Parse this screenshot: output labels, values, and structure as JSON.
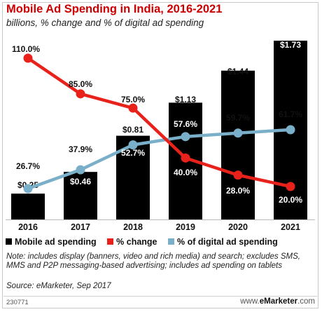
{
  "header": {
    "title": "Mobile Ad Spending in India, 2016-2021",
    "subtitle": "billions, % change and % of digital ad spending"
  },
  "legend": {
    "items": [
      {
        "label": "Mobile ad spending",
        "color": "#000000"
      },
      {
        "label": "% change",
        "color": "#e8221b"
      },
      {
        "label": "% of digital ad spending",
        "color": "#7aafc9"
      }
    ]
  },
  "chart_data": {
    "type": "bar",
    "categories": [
      "2016",
      "2017",
      "2018",
      "2019",
      "2020",
      "2021"
    ],
    "series": [
      {
        "name": "Mobile ad spending",
        "kind": "bar",
        "values": [
          0.25,
          0.46,
          0.81,
          1.13,
          1.44,
          1.73
        ],
        "labels": [
          "$0.25",
          "$0.46",
          "$0.81",
          "$1.13",
          "$1.44",
          "$1.73"
        ],
        "color": "#000000"
      },
      {
        "name": "% change",
        "kind": "line",
        "values": [
          110.0,
          85.0,
          75.0,
          40.0,
          28.0,
          20.0
        ],
        "labels": [
          "110.0%",
          "85.0%",
          "75.0%",
          "40.0%",
          "28.0%",
          "20.0%"
        ],
        "color": "#e8221b"
      },
      {
        "name": "% of digital ad spending",
        "kind": "line",
        "values": [
          26.7,
          37.9,
          52.7,
          57.6,
          59.7,
          61.7
        ],
        "labels": [
          "26.7%",
          "37.9%",
          "52.7%",
          "57.6%",
          "59.7%",
          "61.7%"
        ],
        "color": "#7aafc9"
      }
    ]
  },
  "note": "Note: includes display (banners, video and rich media) and search; excludes SMS, MMS and P2P messaging-based advertising; includes ad spending on tablets",
  "source": "Source: eMarketer, Sep 2017",
  "footer": {
    "code": "230771",
    "brand_prefix": "www.",
    "brand_name": "eMarketer",
    "brand_suffix": ".com"
  }
}
